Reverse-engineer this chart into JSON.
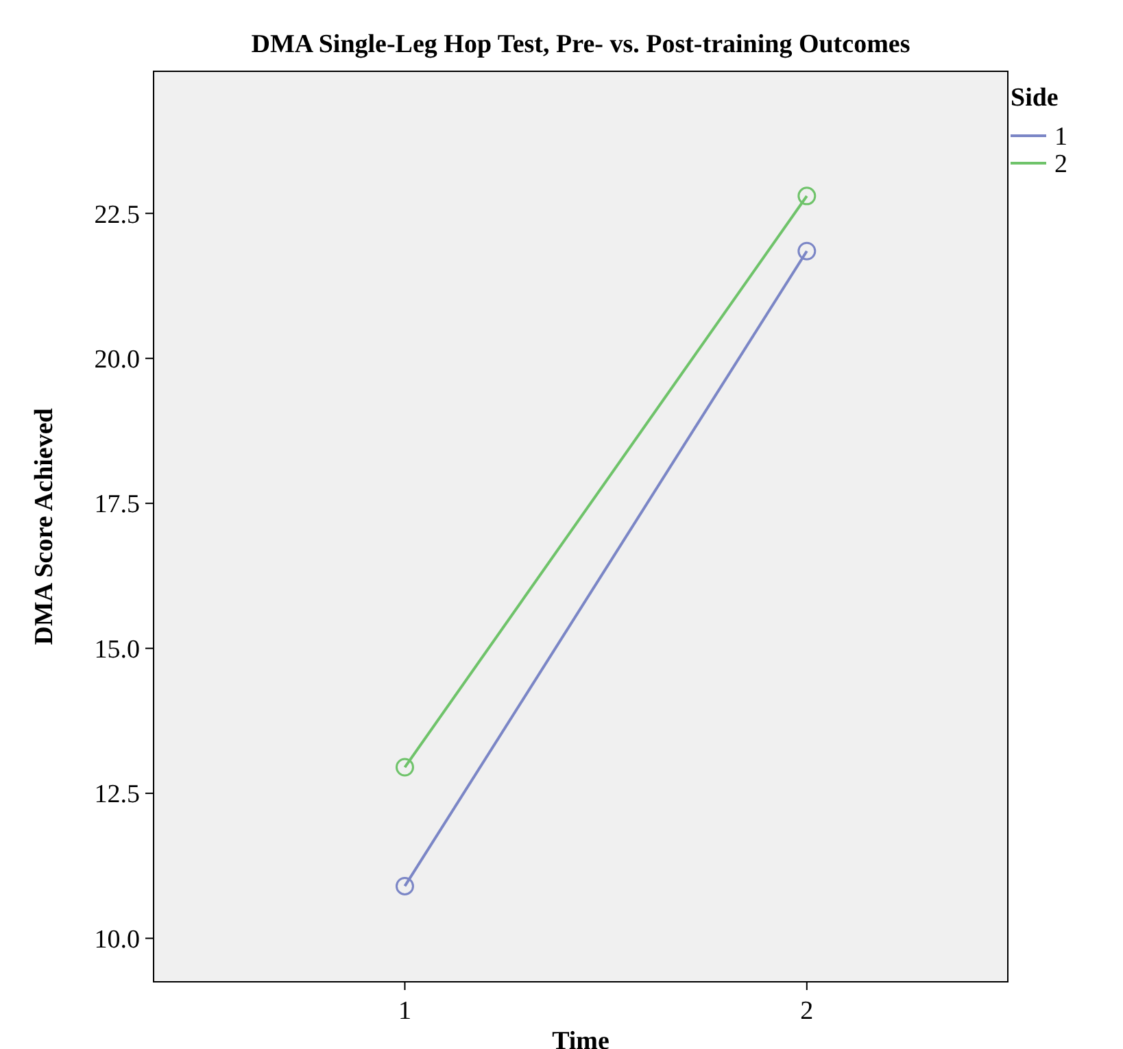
{
  "chart_data": {
    "type": "line",
    "title": "DMA Single-Leg Hop Test, Pre- vs. Post-training Outcomes",
    "xlabel": "Time",
    "ylabel": "DMA Score Achieved",
    "legend_title": "Side",
    "x": [
      1,
      2
    ],
    "series": [
      {
        "name": "1",
        "color": "#7b86c6",
        "values": [
          10.9,
          21.85
        ]
      },
      {
        "name": "2",
        "color": "#6fc36a",
        "values": [
          12.95,
          22.8
        ]
      }
    ],
    "xlim": [
      0.375,
      2.5
    ],
    "xticks": [
      1,
      2
    ],
    "ylim": [
      9.25,
      24.95
    ],
    "yticks": [
      {
        "value": 10,
        "label": "10.0"
      },
      {
        "value": 12.5,
        "label": "12.5"
      },
      {
        "value": 15,
        "label": "15.0"
      },
      {
        "value": 17.5,
        "label": "17.5"
      },
      {
        "value": 20,
        "label": "20.0"
      },
      {
        "value": 22.5,
        "label": "22.5"
      }
    ],
    "marker": "circle",
    "legend": "top right",
    "grid": false
  }
}
